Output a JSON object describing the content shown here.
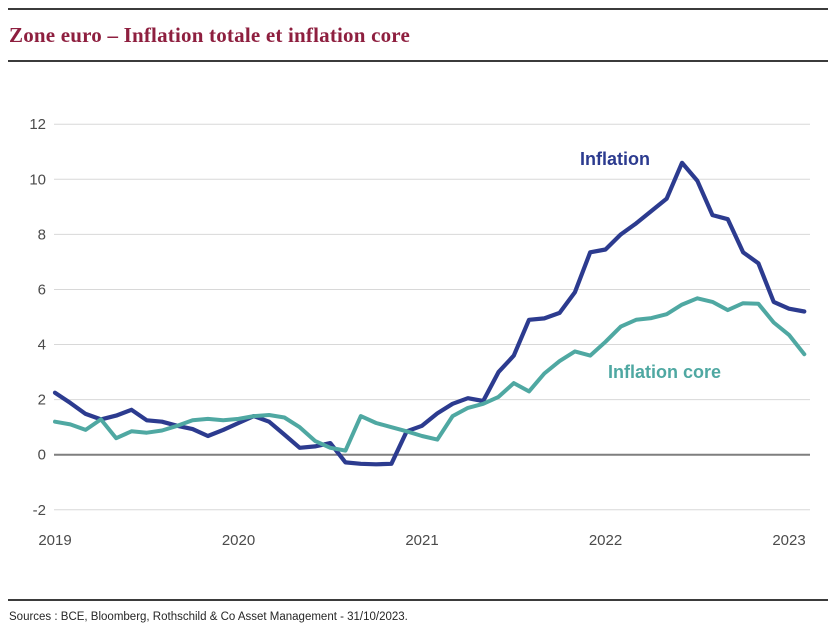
{
  "header": {
    "title": "Zone euro – Inflation totale et inflation core"
  },
  "footer": {
    "source": "Sources : BCE, Bloomberg, Rothschild & Co Asset Management - 31/10/2023."
  },
  "colors": {
    "title_accent": "#8e1f3f",
    "inflation_total": "#2c3b8f",
    "inflation_core": "#4fa8a2",
    "zero_line": "#7f7f7f",
    "gridline": "#d8d8d8",
    "axis_text": "#4b4b4b"
  },
  "chart_data": {
    "type": "line",
    "title": "Zone euro – Inflation totale et inflation core",
    "xlabel": "",
    "ylabel": "",
    "grid": "horizontal",
    "legend_position": "inline-labels",
    "x_axis": {
      "start_year": 2019,
      "frequency": "monthly",
      "ticks": [
        "2019",
        "2020",
        "2021",
        "2022",
        "2023"
      ]
    },
    "y_axis": {
      "min": -2,
      "max": 12,
      "tick_step": 2,
      "ticks": [
        12,
        10,
        8,
        6,
        4,
        2,
        0,
        -2
      ]
    },
    "series": [
      {
        "name": "Inflation",
        "color": "#2c3b8f",
        "values": [
          2.25,
          1.88,
          1.48,
          1.28,
          1.42,
          1.63,
          1.25,
          1.2,
          1.05,
          0.93,
          0.68,
          0.9,
          1.15,
          1.4,
          1.2,
          0.73,
          0.25,
          0.3,
          0.42,
          -0.28,
          -0.33,
          -0.35,
          -0.33,
          0.85,
          1.05,
          1.5,
          1.85,
          2.05,
          1.95,
          3.0,
          3.6,
          4.9,
          4.95,
          5.15,
          5.9,
          7.35,
          7.45,
          8.0,
          8.4,
          8.85,
          9.3,
          10.6,
          9.95,
          8.7,
          8.55,
          7.35,
          6.95,
          5.55,
          5.3,
          5.2
        ]
      },
      {
        "name": "Inflation core",
        "color": "#4fa8a2",
        "values": [
          1.2,
          1.1,
          0.9,
          1.28,
          0.6,
          0.85,
          0.8,
          0.88,
          1.05,
          1.25,
          1.3,
          1.25,
          1.3,
          1.4,
          1.44,
          1.35,
          1.0,
          0.5,
          0.25,
          0.15,
          1.4,
          1.15,
          1.0,
          0.85,
          0.68,
          0.55,
          1.4,
          1.7,
          1.85,
          2.1,
          2.6,
          2.3,
          2.95,
          3.4,
          3.75,
          3.6,
          4.1,
          4.65,
          4.9,
          4.96,
          5.1,
          5.45,
          5.68,
          5.55,
          5.25,
          5.5,
          5.48,
          4.8,
          4.35,
          3.65
        ]
      }
    ]
  }
}
